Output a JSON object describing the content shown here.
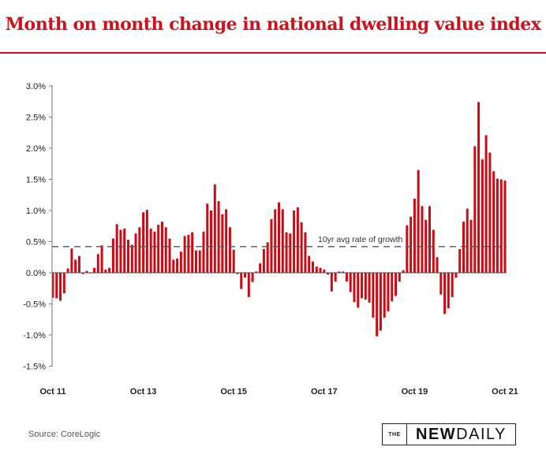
{
  "title": "Month on month change in national dwelling value index",
  "source": "Source: CoreLogic",
  "logo": {
    "the": "THE",
    "new": "NEW",
    "daily": "DAILY"
  },
  "chart_data": {
    "type": "bar",
    "title": "Month on month change in national dwelling value index",
    "x_tick_labels": [
      "Oct 11",
      "Oct 13",
      "Oct 15",
      "Oct 17",
      "Oct 19",
      "Oct 21"
    ],
    "y_tick_labels": [
      "3.0%",
      "2.5%",
      "2.0%",
      "1.5%",
      "1.0%",
      "0.5%",
      "0.0%",
      "-0.5%",
      "-1.0%",
      "-1.5%"
    ],
    "ylim": [
      -1.5,
      3.0
    ],
    "unit": "%",
    "grid": false,
    "bar_color": "#cc0a14",
    "reference_line": {
      "value": 0.42,
      "label": "10yr avg rate of growth",
      "style": "dashed"
    },
    "values": [
      -0.4,
      -0.41,
      -0.45,
      -0.33,
      0.07,
      0.39,
      0.21,
      0.27,
      -0.02,
      0.03,
      -0.01,
      0.08,
      0.3,
      0.44,
      0.05,
      0.08,
      0.55,
      0.78,
      0.69,
      0.71,
      0.53,
      0.45,
      0.63,
      0.73,
      0.97,
      1.01,
      0.71,
      0.66,
      0.77,
      0.82,
      0.73,
      0.55,
      0.21,
      0.23,
      0.34,
      0.59,
      0.61,
      0.65,
      0.36,
      0.36,
      0.66,
      1.11,
      1.0,
      1.42,
      1.15,
      0.94,
      1.02,
      0.73,
      0.37,
      -0.02,
      -0.26,
      -0.08,
      -0.39,
      -0.15,
      0.02,
      0.15,
      0.38,
      0.49,
      0.86,
      1.02,
      1.13,
      1.02,
      0.65,
      0.63,
      1.0,
      1.05,
      0.81,
      0.65,
      0.27,
      0.18,
      0.1,
      0.08,
      0.05,
      -0.03,
      -0.3,
      -0.14,
      0.02,
      0.02,
      -0.14,
      -0.31,
      -0.47,
      -0.56,
      -0.41,
      -0.43,
      -0.48,
      -0.72,
      -1.02,
      -0.93,
      -0.72,
      -0.62,
      -0.46,
      -0.37,
      -0.14,
      0.04,
      0.76,
      0.9,
      1.19,
      1.65,
      1.07,
      0.85,
      1.07,
      0.69,
      0.25,
      -0.35,
      -0.66,
      -0.57,
      -0.39,
      -0.08,
      0.38,
      0.82,
      1.03,
      0.85,
      2.03,
      2.74,
      1.82,
      2.21,
      1.93,
      1.63,
      1.51,
      1.5,
      1.48
    ]
  }
}
